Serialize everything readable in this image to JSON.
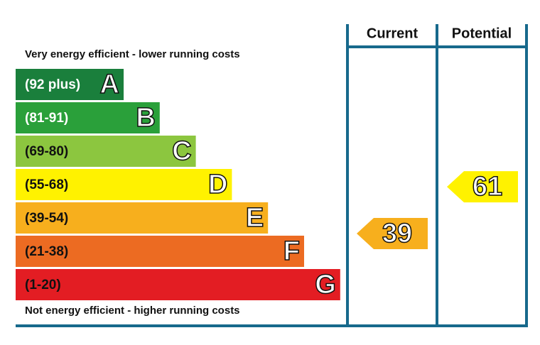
{
  "chart_data": {
    "type": "epc",
    "top_label": "Very energy efficient - lower running costs",
    "bottom_label": "Not energy efficient - higher running costs",
    "columns": [
      "Current",
      "Potential"
    ],
    "bands": [
      {
        "range": "(92 plus)",
        "letter": "A",
        "color": "#1a7f3c",
        "text_color": "#ffffff"
      },
      {
        "range": "(81-91)",
        "letter": "B",
        "color": "#2aa03a",
        "text_color": "#ffffff"
      },
      {
        "range": "(69-80)",
        "letter": "C",
        "color": "#8cc63f",
        "text_color": "#111111"
      },
      {
        "range": "(55-68)",
        "letter": "D",
        "color": "#fff200",
        "text_color": "#111111"
      },
      {
        "range": "(39-54)",
        "letter": "E",
        "color": "#f7af1d",
        "text_color": "#111111"
      },
      {
        "range": "(21-38)",
        "letter": "F",
        "color": "#ec6b22",
        "text_color": "#111111"
      },
      {
        "range": "(1-20)",
        "letter": "G",
        "color": "#e31d23",
        "text_color": "#111111"
      }
    ],
    "current": 39,
    "potential": 61,
    "frame_color": "#17698c"
  }
}
